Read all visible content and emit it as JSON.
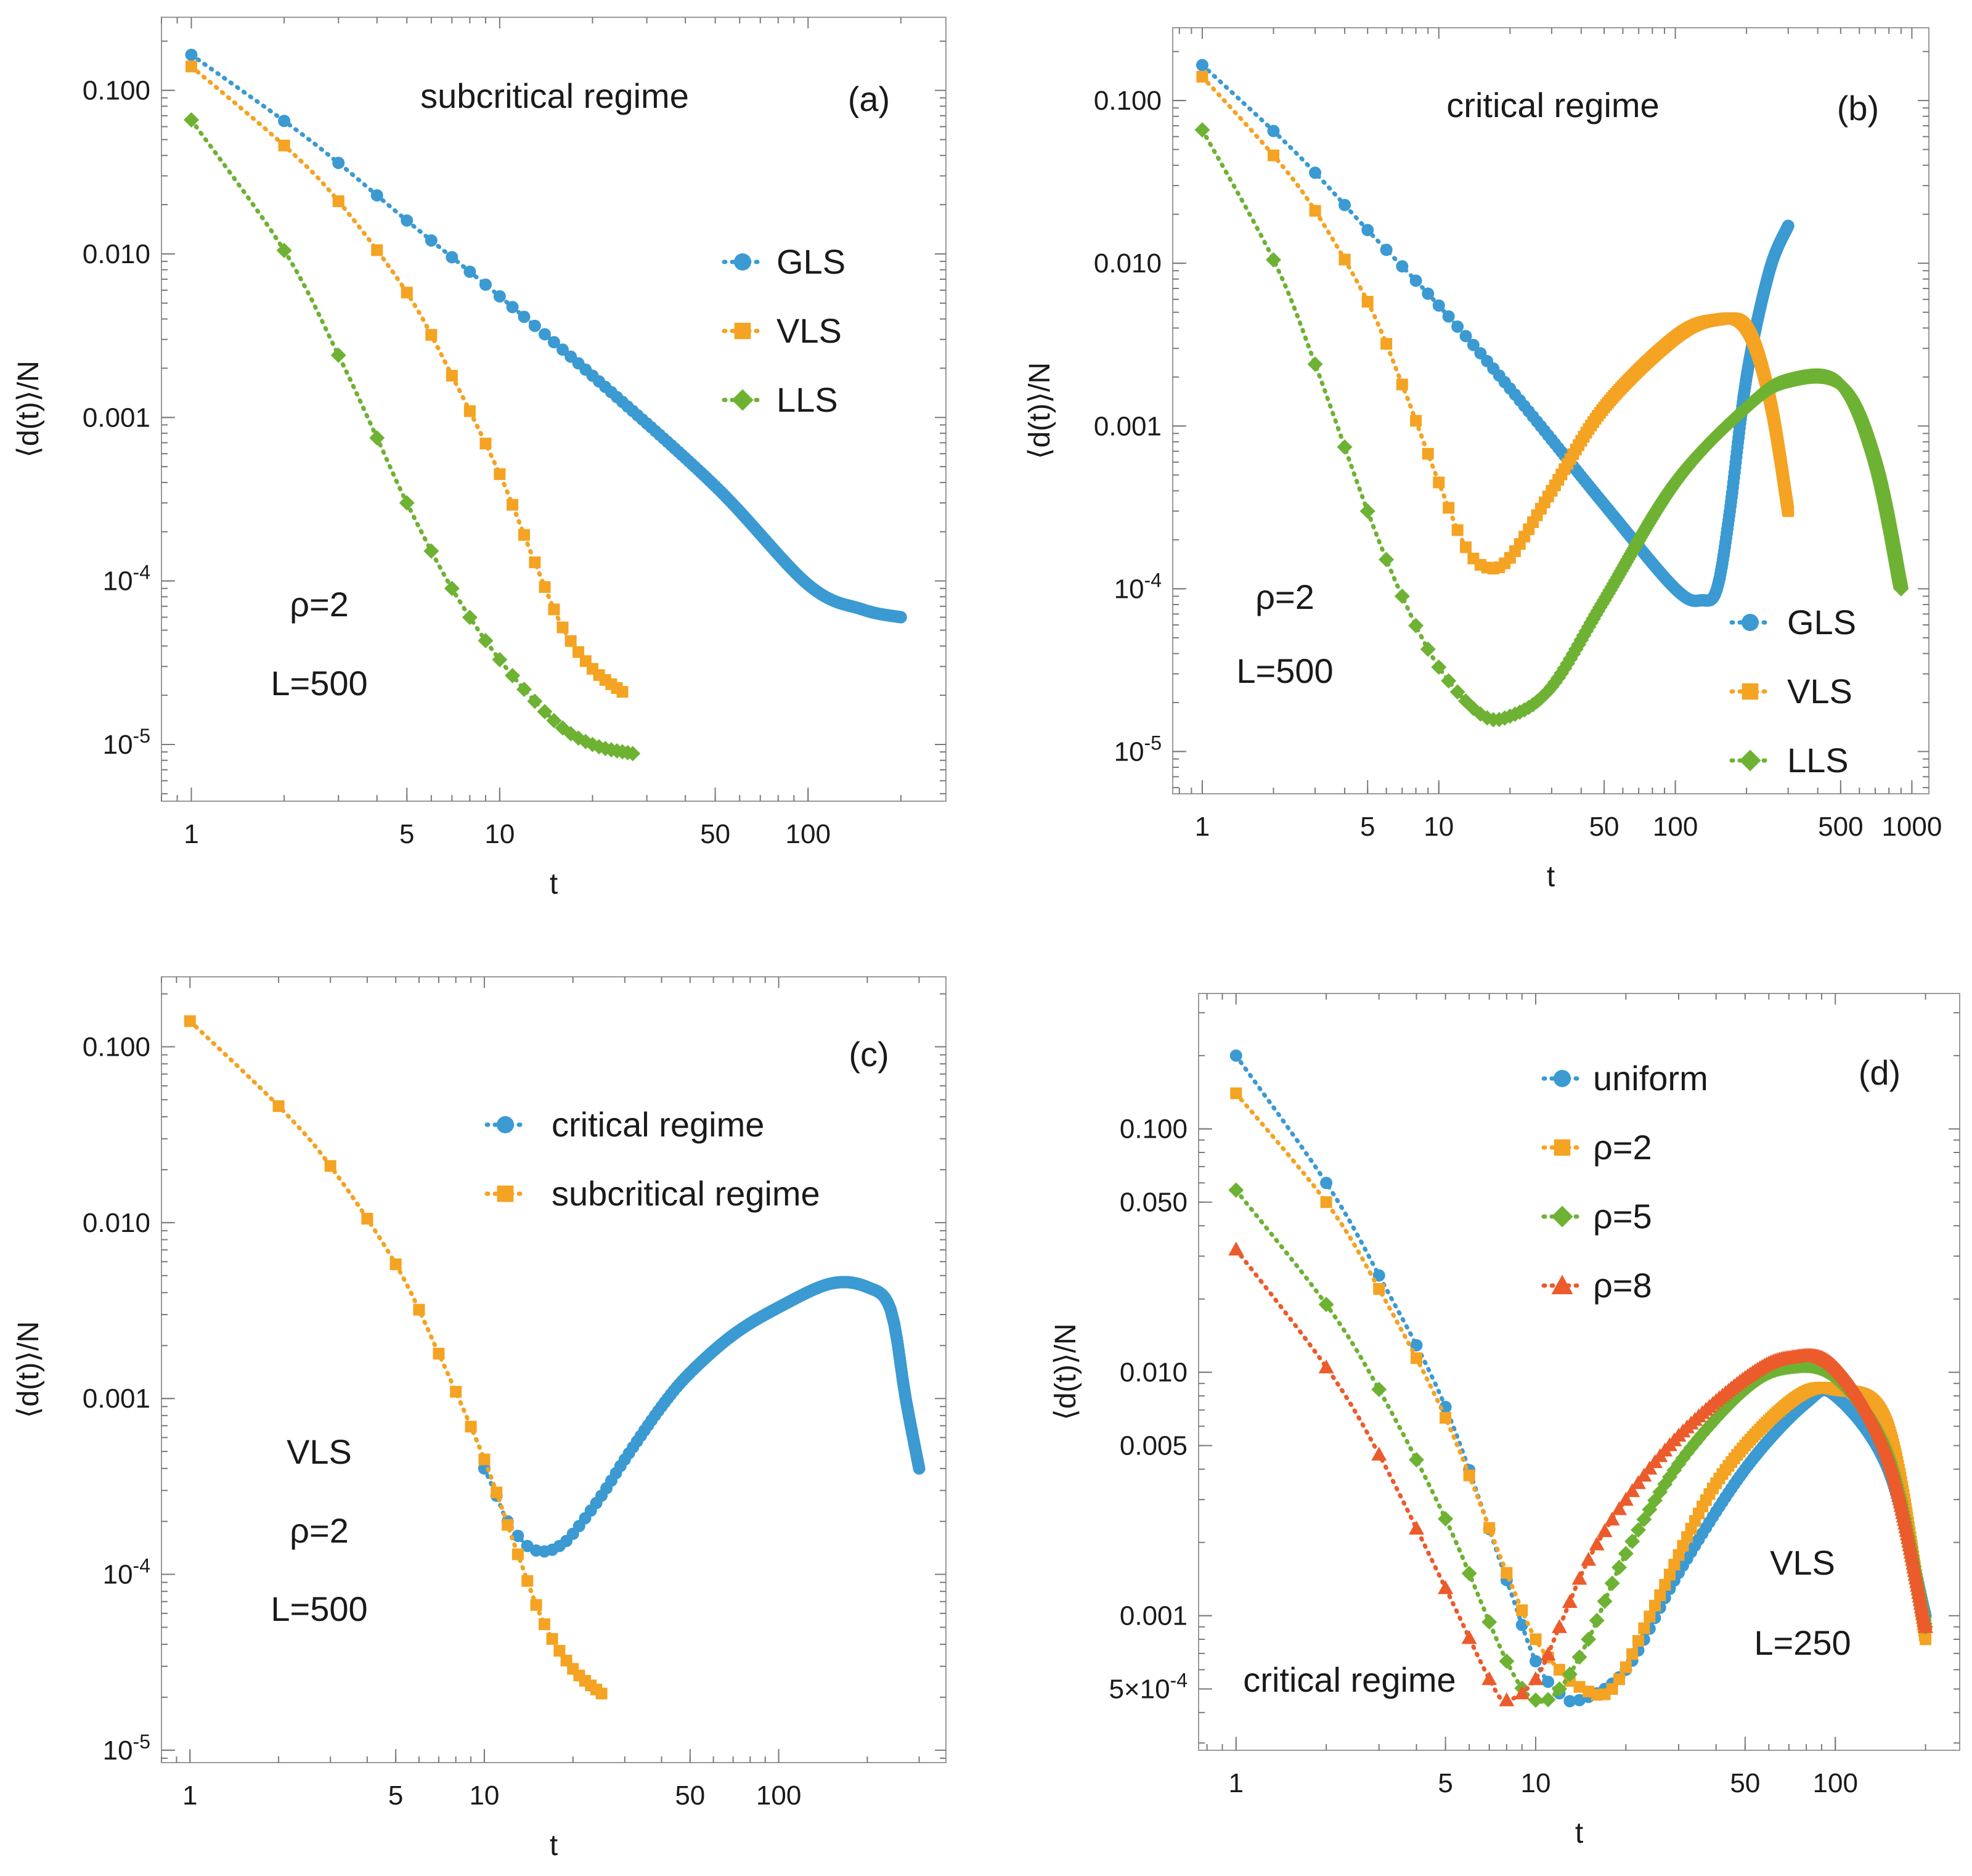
{
  "colors": {
    "blue": "#3b9ad2",
    "orange": "#f4a322",
    "green": "#6eb234",
    "red": "#ec5b2b"
  },
  "chart_data": [
    {
      "type": "scatter",
      "id": "a",
      "panel_label": "(a)",
      "title": "subcritical regime",
      "xlabel": "t",
      "ylabel": "⟨d(t)⟩/N",
      "xscale": "log",
      "yscale": "log",
      "xlim": [
        0.8,
        280
      ],
      "ylim": [
        4.5e-06,
        0.28
      ],
      "xticks": [
        {
          "value": 1,
          "label": "1"
        },
        {
          "value": 5,
          "label": "5"
        },
        {
          "value": 10,
          "label": "10"
        },
        {
          "value": 50,
          "label": "50"
        },
        {
          "value": 100,
          "label": "100"
        }
      ],
      "yticks": [
        {
          "value": 0.1,
          "label": "0.100"
        },
        {
          "value": 0.01,
          "label": "0.010"
        },
        {
          "value": 0.001,
          "label": "0.001"
        },
        {
          "value": 0.0001,
          "label": "10-4"
        },
        {
          "value": 1e-05,
          "label": "10-5"
        }
      ],
      "annotations": [
        "ρ=2",
        "L=500"
      ],
      "legend": {
        "position": "right",
        "entries": [
          "GLS",
          "VLS",
          "LLS"
        ]
      },
      "series": [
        {
          "name": "GLS",
          "color": "blue",
          "marker": "circle",
          "x": [
            1,
            2,
            3,
            5,
            10,
            20,
            50,
            100,
            150,
            200
          ],
          "y": [
            0.165,
            0.065,
            0.036,
            0.016,
            0.0055,
            0.0018,
            0.00038,
            9.5e-05,
            6.7e-05,
            6e-05
          ]
        },
        {
          "name": "VLS",
          "color": "orange",
          "marker": "square",
          "x": [
            1,
            2,
            3,
            5,
            7,
            10,
            13,
            16,
            20,
            25
          ],
          "y": [
            0.14,
            0.046,
            0.021,
            0.0058,
            0.0018,
            0.00045,
            0.00013,
            5.2e-05,
            2.9e-05,
            2.1e-05
          ]
        },
        {
          "name": "LLS",
          "color": "green",
          "marker": "diamond",
          "x": [
            1,
            2,
            3,
            4,
            5,
            7,
            10,
            15,
            20,
            27
          ],
          "y": [
            0.066,
            0.0105,
            0.0024,
            0.00075,
            0.0003,
            9e-05,
            3.3e-05,
            1.4e-05,
            1e-05,
            8.8e-06
          ]
        }
      ]
    },
    {
      "type": "scatter",
      "id": "b",
      "panel_label": "(b)",
      "title": "critical regime",
      "xlabel": "t",
      "ylabel": "⟨d(t)⟩/N",
      "xscale": "log",
      "yscale": "log",
      "xlim": [
        0.75,
        1180
      ],
      "ylim": [
        5.5e-06,
        0.28
      ],
      "xticks": [
        {
          "value": 1,
          "label": "1"
        },
        {
          "value": 5,
          "label": "5"
        },
        {
          "value": 10,
          "label": "10"
        },
        {
          "value": 50,
          "label": "50"
        },
        {
          "value": 100,
          "label": "100"
        },
        {
          "value": 500,
          "label": "500"
        },
        {
          "value": 1000,
          "label": "1000"
        }
      ],
      "yticks": [
        {
          "value": 0.1,
          "label": "0.100"
        },
        {
          "value": 0.01,
          "label": "0.010"
        },
        {
          "value": 0.001,
          "label": "0.001"
        },
        {
          "value": 0.0001,
          "label": "10-4"
        },
        {
          "value": 1e-05,
          "label": "10-5"
        }
      ],
      "annotations": [
        "ρ=2",
        "L=500"
      ],
      "legend": {
        "position": "bottom-right",
        "entries": [
          "GLS",
          "VLS",
          "LLS"
        ]
      },
      "series": [
        {
          "name": "GLS",
          "color": "blue",
          "marker": "circle",
          "x": [
            1,
            2,
            3,
            5,
            10,
            20,
            50,
            100,
            130,
            150,
            170,
            200,
            250,
            300
          ],
          "y": [
            0.165,
            0.065,
            0.036,
            0.016,
            0.0055,
            0.0017,
            0.00033,
            0.0001,
            8.5e-05,
            0.0001,
            0.0003,
            0.002,
            0.009,
            0.017
          ]
        },
        {
          "name": "VLS",
          "color": "orange",
          "marker": "square",
          "x": [
            1,
            2,
            3,
            5,
            7,
            10,
            13,
            16,
            20,
            30,
            50,
            100,
            150,
            200,
            250,
            300
          ],
          "y": [
            0.14,
            0.046,
            0.021,
            0.0058,
            0.0018,
            0.00045,
            0.00018,
            0.000135,
            0.000155,
            0.0004,
            0.0013,
            0.0035,
            0.0045,
            0.004,
            0.0015,
            0.0003
          ]
        },
        {
          "name": "LLS",
          "color": "green",
          "marker": "diamond",
          "x": [
            1,
            2,
            3,
            5,
            7,
            10,
            15,
            20,
            30,
            50,
            100,
            200,
            300,
            500,
            700,
            900
          ],
          "y": [
            0.066,
            0.0105,
            0.0024,
            0.0003,
            9e-05,
            3.3e-05,
            1.7e-05,
            1.65e-05,
            2.5e-05,
            8.5e-05,
            0.00045,
            0.0013,
            0.0019,
            0.0018,
            0.0006,
            0.0001
          ]
        }
      ]
    },
    {
      "type": "scatter",
      "id": "c",
      "panel_label": "(c)",
      "xlabel": "t",
      "ylabel": "⟨d(t)⟩/N",
      "xscale": "log",
      "yscale": "log",
      "xlim": [
        0.8,
        370
      ],
      "ylim": [
        8.5e-06,
        0.25
      ],
      "xticks": [
        {
          "value": 1,
          "label": "1"
        },
        {
          "value": 5,
          "label": "5"
        },
        {
          "value": 10,
          "label": "10"
        },
        {
          "value": 50,
          "label": "50"
        },
        {
          "value": 100,
          "label": "100"
        }
      ],
      "yticks": [
        {
          "value": 0.1,
          "label": "0.100"
        },
        {
          "value": 0.01,
          "label": "0.010"
        },
        {
          "value": 0.001,
          "label": "0.001"
        },
        {
          "value": 0.0001,
          "label": "10-4"
        },
        {
          "value": 1e-05,
          "label": "10-5"
        }
      ],
      "annotations": [
        "VLS",
        "ρ=2",
        "L=500"
      ],
      "legend": {
        "position": "right",
        "entries": [
          "critical regime",
          "subcritical regime"
        ]
      },
      "series": [
        {
          "name": "critical regime",
          "color": "blue",
          "marker": "circle",
          "x": [
            10,
            11,
            12,
            14,
            16,
            18,
            20,
            25,
            30,
            40,
            50,
            70,
            100,
            150,
            200,
            240,
            270,
            300
          ],
          "y": [
            0.0004,
            0.00028,
            0.0002,
            0.000145,
            0.000135,
            0.000145,
            0.00017,
            0.00028,
            0.00045,
            0.0009,
            0.0014,
            0.0023,
            0.0033,
            0.0045,
            0.0043,
            0.0032,
            0.001,
            0.0004
          ]
        },
        {
          "name": "subcritical regime",
          "color": "orange",
          "marker": "square",
          "x": [
            1,
            2,
            3,
            5,
            7,
            10,
            13,
            16,
            20,
            25
          ],
          "y": [
            0.14,
            0.046,
            0.021,
            0.0058,
            0.0018,
            0.00045,
            0.00013,
            5.2e-05,
            2.9e-05,
            2.1e-05
          ]
        }
      ]
    },
    {
      "type": "scatter",
      "id": "d",
      "panel_label": "(d)",
      "xlabel": "t",
      "ylabel": "⟨d(t)⟩/N",
      "xscale": "log",
      "yscale": "log",
      "xlim": [
        0.75,
        260
      ],
      "ylim": [
        0.00028,
        0.36
      ],
      "xticks": [
        {
          "value": 1,
          "label": "1"
        },
        {
          "value": 5,
          "label": "5"
        },
        {
          "value": 10,
          "label": "10"
        },
        {
          "value": 50,
          "label": "50"
        },
        {
          "value": 100,
          "label": "100"
        }
      ],
      "yticks": [
        {
          "value": 0.1,
          "label": "0.100"
        },
        {
          "value": 0.05,
          "label": "0.050"
        },
        {
          "value": 0.01,
          "label": "0.010"
        },
        {
          "value": 0.005,
          "label": "0.005"
        },
        {
          "value": 0.001,
          "label": "0.001"
        },
        {
          "value": 0.0005,
          "label": "5×10-4"
        }
      ],
      "annotations": [
        "critical regime",
        "VLS",
        "L=250"
      ],
      "legend": {
        "position": "top-right",
        "entries": [
          "uniform",
          "ρ=2",
          "ρ=5",
          "ρ=8"
        ]
      },
      "series": [
        {
          "name": "uniform",
          "color": "blue",
          "marker": "circle",
          "x": [
            1,
            2,
            3,
            5,
            8,
            10,
            12,
            14,
            20,
            30,
            50,
            80,
            100,
            150,
            200
          ],
          "y": [
            0.2,
            0.06,
            0.025,
            0.0072,
            0.0014,
            0.00065,
            0.00048,
            0.00045,
            0.0006,
            0.0015,
            0.004,
            0.0075,
            0.008,
            0.004,
            0.001
          ]
        },
        {
          "name": "ρ=2",
          "color": "orange",
          "marker": "square",
          "x": [
            1,
            2,
            3,
            5,
            8,
            10,
            12,
            14,
            18,
            25,
            40,
            70,
            100,
            150,
            200
          ],
          "y": [
            0.14,
            0.05,
            0.022,
            0.0065,
            0.0015,
            0.0008,
            0.0006,
            0.00051,
            0.0005,
            0.0011,
            0.0035,
            0.0075,
            0.0085,
            0.006,
            0.0008
          ]
        },
        {
          "name": "ρ=5",
          "color": "green",
          "marker": "diamond",
          "x": [
            1,
            2,
            3,
            5,
            8,
            10,
            12,
            15,
            20,
            30,
            50,
            70,
            100,
            150,
            200
          ],
          "y": [
            0.056,
            0.019,
            0.0085,
            0.0025,
            0.00065,
            0.00045,
            0.0005,
            0.0008,
            0.0018,
            0.0042,
            0.0085,
            0.0105,
            0.0095,
            0.0045,
            0.0009
          ]
        },
        {
          "name": "ρ=8",
          "color": "red",
          "marker": "triangle",
          "x": [
            1,
            2,
            3,
            5,
            7,
            8,
            10,
            12,
            15,
            20,
            30,
            50,
            70,
            100,
            150,
            200
          ],
          "y": [
            0.032,
            0.0105,
            0.0046,
            0.0013,
            0.00055,
            0.00045,
            0.00055,
            0.0009,
            0.0017,
            0.003,
            0.0055,
            0.0095,
            0.0115,
            0.0105,
            0.0045,
            0.0009
          ]
        }
      ]
    }
  ]
}
